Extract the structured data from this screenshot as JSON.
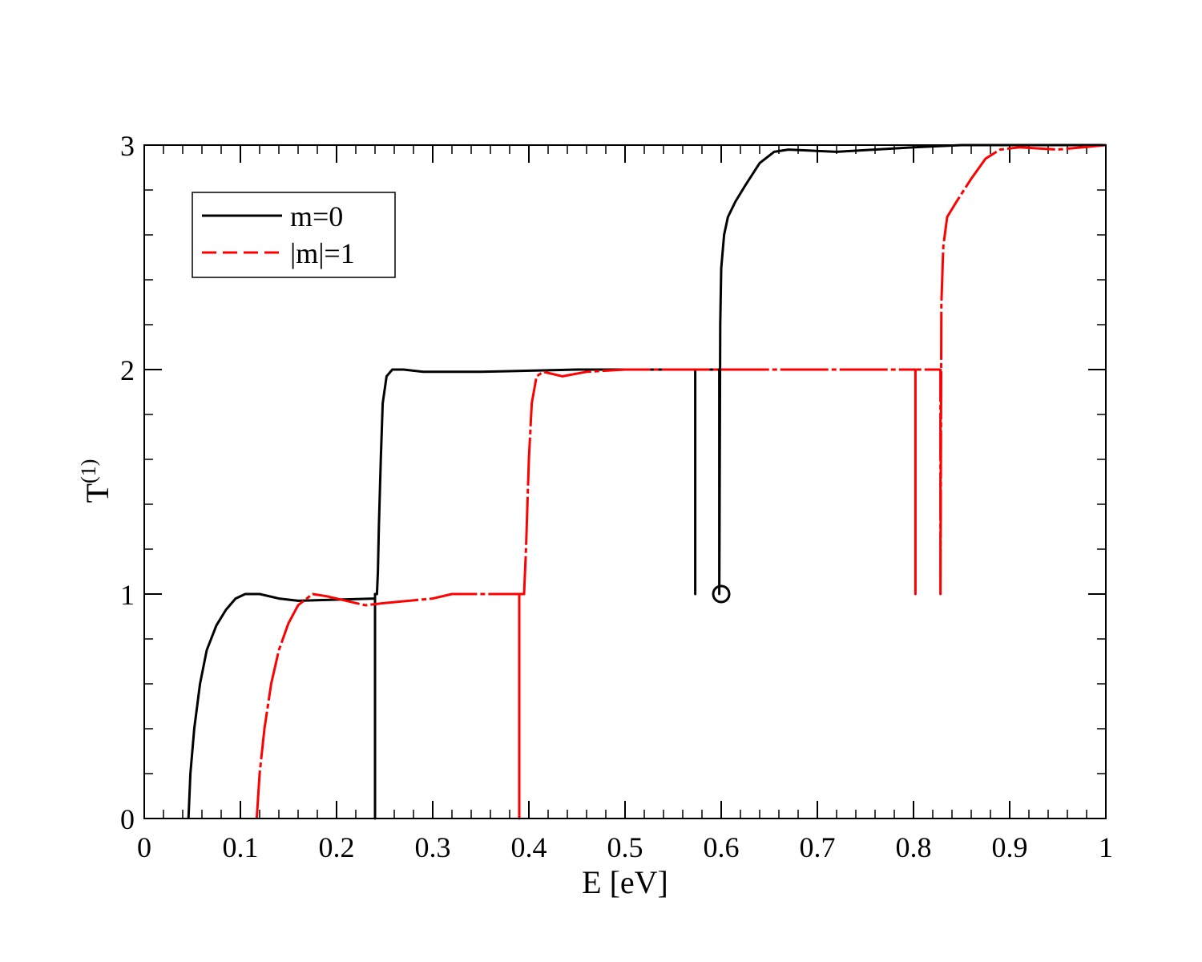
{
  "chart_data": {
    "type": "line",
    "title": "",
    "xlabel": "E [eV]",
    "ylabel_base": "T",
    "ylabel_sup": "(1)",
    "xlim": [
      0,
      1
    ],
    "ylim": [
      0,
      3
    ],
    "xticks": [
      0,
      0.1,
      0.2,
      0.3,
      0.4,
      0.5,
      0.6,
      0.7,
      0.8,
      0.9,
      1
    ],
    "xtick_labels": [
      "0",
      "0.1",
      "0.2",
      "0.3",
      "0.4",
      "0.5",
      "0.6",
      "0.7",
      "0.8",
      "0.9",
      "1"
    ],
    "yticks": [
      0,
      1,
      2,
      3
    ],
    "ytick_labels": [
      "0",
      "1",
      "2",
      "3"
    ],
    "x_minor_step": 0.02,
    "y_minor_step": 0.2,
    "grid": false,
    "legend": {
      "position": "top-left"
    },
    "series": [
      {
        "name": "m=0",
        "color": "#000000",
        "dash": "solid",
        "points": [
          [
            0.046,
            0
          ],
          [
            0.048,
            0.2
          ],
          [
            0.052,
            0.4
          ],
          [
            0.058,
            0.6
          ],
          [
            0.065,
            0.75
          ],
          [
            0.075,
            0.86
          ],
          [
            0.085,
            0.93
          ],
          [
            0.095,
            0.98
          ],
          [
            0.105,
            1.0
          ],
          [
            0.12,
            1.0
          ],
          [
            0.14,
            0.98
          ],
          [
            0.16,
            0.97
          ],
          [
            0.2,
            0.975
          ],
          [
            0.24,
            0.98
          ],
          [
            0.24,
            0.0
          ],
          [
            0.24,
            1.0
          ],
          [
            0.242,
            1.0
          ],
          [
            0.243,
            1.1
          ],
          [
            0.244,
            1.3
          ],
          [
            0.246,
            1.6
          ],
          [
            0.248,
            1.85
          ],
          [
            0.252,
            1.97
          ],
          [
            0.258,
            2.0
          ],
          [
            0.27,
            2.0
          ],
          [
            0.29,
            1.99
          ],
          [
            0.35,
            1.99
          ],
          [
            0.45,
            2.0
          ],
          [
            0.573,
            2.0
          ],
          [
            0.573,
            1.0
          ],
          [
            0.573,
            2.0
          ],
          [
            0.598,
            2.0
          ],
          [
            0.598,
            1.0
          ],
          [
            0.599,
            2.2
          ],
          [
            0.6,
            2.45
          ],
          [
            0.603,
            2.6
          ],
          [
            0.607,
            2.68
          ],
          [
            0.615,
            2.75
          ],
          [
            0.625,
            2.82
          ],
          [
            0.64,
            2.92
          ],
          [
            0.655,
            2.97
          ],
          [
            0.67,
            2.98
          ],
          [
            0.72,
            2.97
          ],
          [
            0.8,
            2.99
          ],
          [
            0.85,
            3.0
          ],
          [
            1.0,
            3.0
          ]
        ],
        "markers": [
          [
            0.6,
            1.0
          ]
        ]
      },
      {
        "name": "|m|=1",
        "color": "#ff0000",
        "dash": "dashed",
        "points": [
          [
            0.117,
            0
          ],
          [
            0.12,
            0.2
          ],
          [
            0.125,
            0.4
          ],
          [
            0.132,
            0.6
          ],
          [
            0.14,
            0.75
          ],
          [
            0.15,
            0.87
          ],
          [
            0.16,
            0.95
          ],
          [
            0.175,
            1.0
          ],
          [
            0.19,
            0.99
          ],
          [
            0.21,
            0.97
          ],
          [
            0.23,
            0.95
          ],
          [
            0.25,
            0.96
          ],
          [
            0.3,
            0.98
          ],
          [
            0.32,
            1.0
          ],
          [
            0.39,
            1.0
          ],
          [
            0.39,
            0.0
          ],
          [
            0.39,
            1.0
          ],
          [
            0.395,
            1.0
          ],
          [
            0.397,
            1.2
          ],
          [
            0.4,
            1.6
          ],
          [
            0.403,
            1.85
          ],
          [
            0.408,
            1.97
          ],
          [
            0.415,
            1.99
          ],
          [
            0.435,
            1.97
          ],
          [
            0.46,
            1.99
          ],
          [
            0.5,
            2.0
          ],
          [
            0.6,
            2.0
          ],
          [
            0.7,
            2.0
          ],
          [
            0.802,
            2.0
          ],
          [
            0.802,
            1.0
          ],
          [
            0.802,
            2.0
          ],
          [
            0.828,
            2.0
          ],
          [
            0.828,
            1.0
          ],
          [
            0.829,
            2.3
          ],
          [
            0.831,
            2.55
          ],
          [
            0.835,
            2.68
          ],
          [
            0.845,
            2.75
          ],
          [
            0.86,
            2.85
          ],
          [
            0.875,
            2.94
          ],
          [
            0.89,
            2.98
          ],
          [
            0.91,
            2.99
          ],
          [
            0.95,
            2.98
          ],
          [
            1.0,
            3.0
          ]
        ],
        "markers": []
      }
    ]
  }
}
